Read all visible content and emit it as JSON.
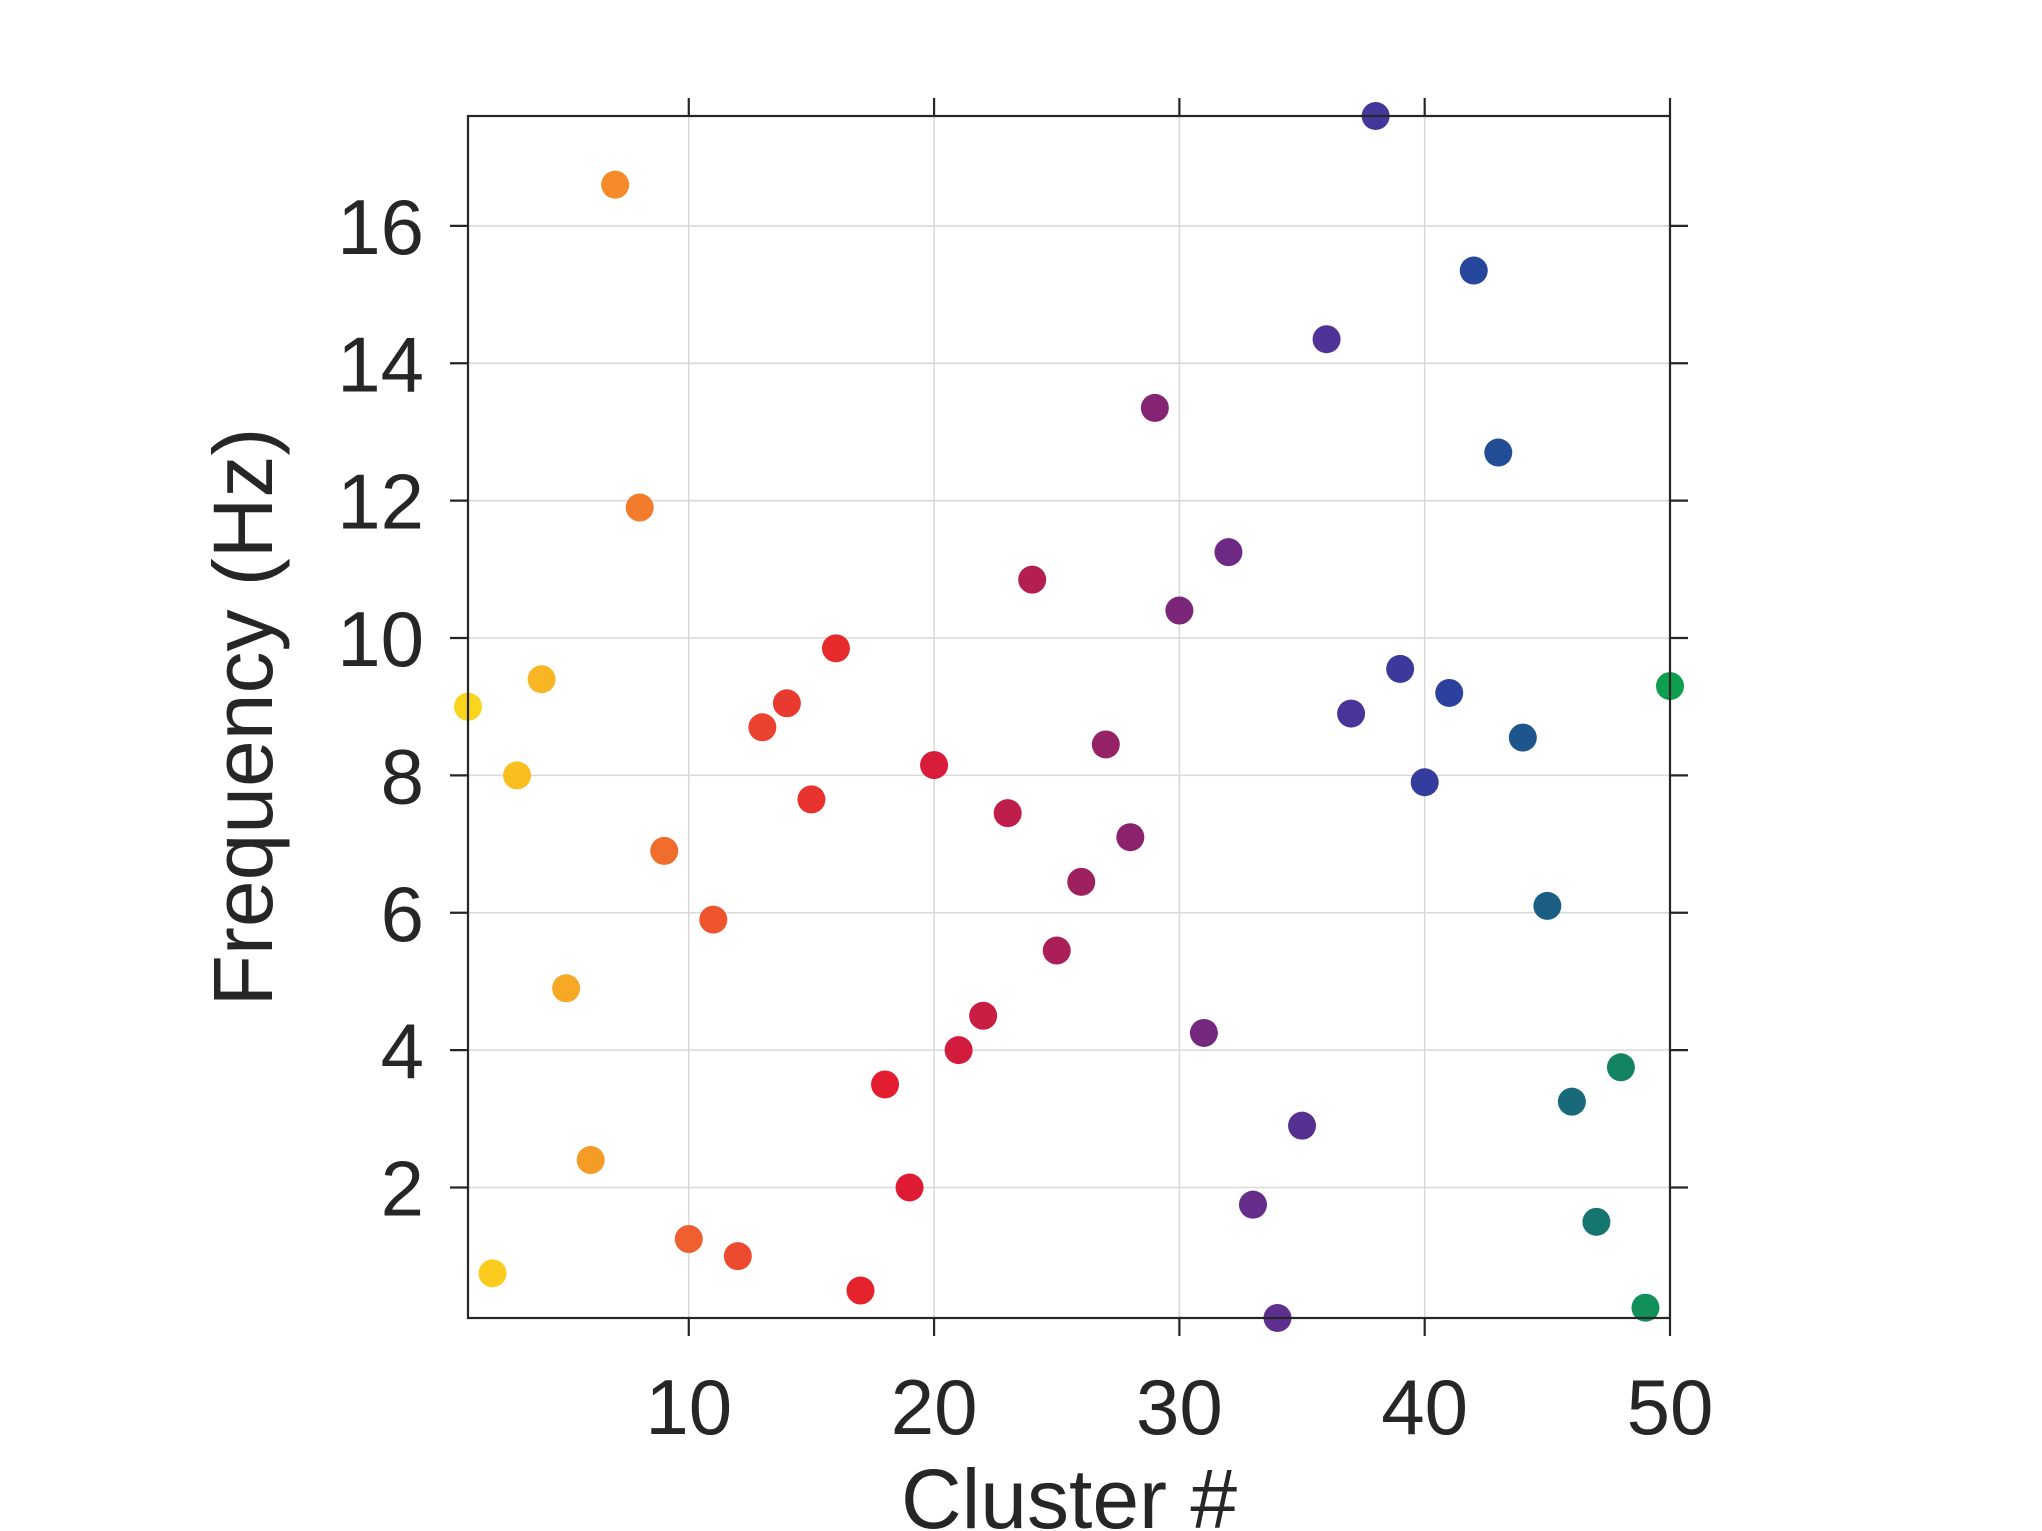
{
  "chart_data": {
    "type": "scatter",
    "xlabel": "Cluster #",
    "ylabel": "Frequency (Hz)",
    "xlim": [
      1,
      50
    ],
    "ylim": [
      0.1,
      17.6
    ],
    "xticks": [
      10,
      20,
      30,
      40,
      50
    ],
    "yticks": [
      2,
      4,
      6,
      8,
      10,
      12,
      14,
      16
    ],
    "grid": true,
    "points": [
      {
        "x": 1,
        "y": 9.0,
        "color": "#fad51e"
      },
      {
        "x": 2,
        "y": 0.75,
        "color": "#fbcc1d"
      },
      {
        "x": 3,
        "y": 8.0,
        "color": "#f9bf21"
      },
      {
        "x": 4,
        "y": 9.4,
        "color": "#f8b524"
      },
      {
        "x": 5,
        "y": 4.9,
        "color": "#f7a925"
      },
      {
        "x": 6,
        "y": 2.4,
        "color": "#f59c27"
      },
      {
        "x": 7,
        "y": 16.6,
        "color": "#f48a2a"
      },
      {
        "x": 8,
        "y": 11.9,
        "color": "#f27b2c"
      },
      {
        "x": 9,
        "y": 6.9,
        "color": "#f06d2e"
      },
      {
        "x": 10,
        "y": 1.25,
        "color": "#ef5f2f"
      },
      {
        "x": 11,
        "y": 5.9,
        "color": "#ee552f"
      },
      {
        "x": 12,
        "y": 1.0,
        "color": "#ec4b2f"
      },
      {
        "x": 13,
        "y": 8.7,
        "color": "#eb422f"
      },
      {
        "x": 14,
        "y": 9.05,
        "color": "#e93a2f"
      },
      {
        "x": 15,
        "y": 7.65,
        "color": "#e8322e"
      },
      {
        "x": 16,
        "y": 9.85,
        "color": "#e72b2d"
      },
      {
        "x": 17,
        "y": 0.5,
        "color": "#e5232d"
      },
      {
        "x": 18,
        "y": 3.5,
        "color": "#e41e30"
      },
      {
        "x": 19,
        "y": 2.0,
        "color": "#e01c35"
      },
      {
        "x": 20,
        "y": 8.15,
        "color": "#d91c39"
      },
      {
        "x": 21,
        "y": 4.0,
        "color": "#d11c3e"
      },
      {
        "x": 22,
        "y": 4.5,
        "color": "#c91d44"
      },
      {
        "x": 23,
        "y": 7.45,
        "color": "#bf1d4a"
      },
      {
        "x": 24,
        "y": 10.85,
        "color": "#b41e51"
      },
      {
        "x": 25,
        "y": 5.45,
        "color": "#aa1f58"
      },
      {
        "x": 26,
        "y": 6.45,
        "color": "#9f205f"
      },
      {
        "x": 27,
        "y": 8.45,
        "color": "#952166"
      },
      {
        "x": 28,
        "y": 7.1,
        "color": "#8c226d"
      },
      {
        "x": 29,
        "y": 13.35,
        "color": "#842473"
      },
      {
        "x": 30,
        "y": 10.4,
        "color": "#7c2679"
      },
      {
        "x": 31,
        "y": 4.25,
        "color": "#74287e"
      },
      {
        "x": 32,
        "y": 11.25,
        "color": "#6c2a84"
      },
      {
        "x": 33,
        "y": 1.75,
        "color": "#652d89"
      },
      {
        "x": 34,
        "y": 0.1,
        "color": "#5e2f8e"
      },
      {
        "x": 35,
        "y": 2.9,
        "color": "#573192"
      },
      {
        "x": 36,
        "y": 14.35,
        "color": "#503396"
      },
      {
        "x": 37,
        "y": 8.9,
        "color": "#493599"
      },
      {
        "x": 38,
        "y": 17.6,
        "color": "#43379b"
      },
      {
        "x": 39,
        "y": 9.55,
        "color": "#3c399d"
      },
      {
        "x": 40,
        "y": 7.9,
        "color": "#343c9e"
      },
      {
        "x": 41,
        "y": 9.2,
        "color": "#2c409e"
      },
      {
        "x": 42,
        "y": 15.35,
        "color": "#26469b"
      },
      {
        "x": 43,
        "y": 12.7,
        "color": "#224d94"
      },
      {
        "x": 44,
        "y": 8.55,
        "color": "#1e558c"
      },
      {
        "x": 45,
        "y": 6.1,
        "color": "#1b5e83"
      },
      {
        "x": 46,
        "y": 3.25,
        "color": "#186a7a"
      },
      {
        "x": 47,
        "y": 1.5,
        "color": "#16766f"
      },
      {
        "x": 48,
        "y": 3.75,
        "color": "#138364"
      },
      {
        "x": 49,
        "y": 0.25,
        "color": "#119059"
      },
      {
        "x": 50,
        "y": 9.3,
        "color": "#0f9d50"
      }
    ]
  },
  "colors": {
    "axis": "#262626",
    "grid": "#d9d9d9",
    "background": "#ffffff"
  }
}
